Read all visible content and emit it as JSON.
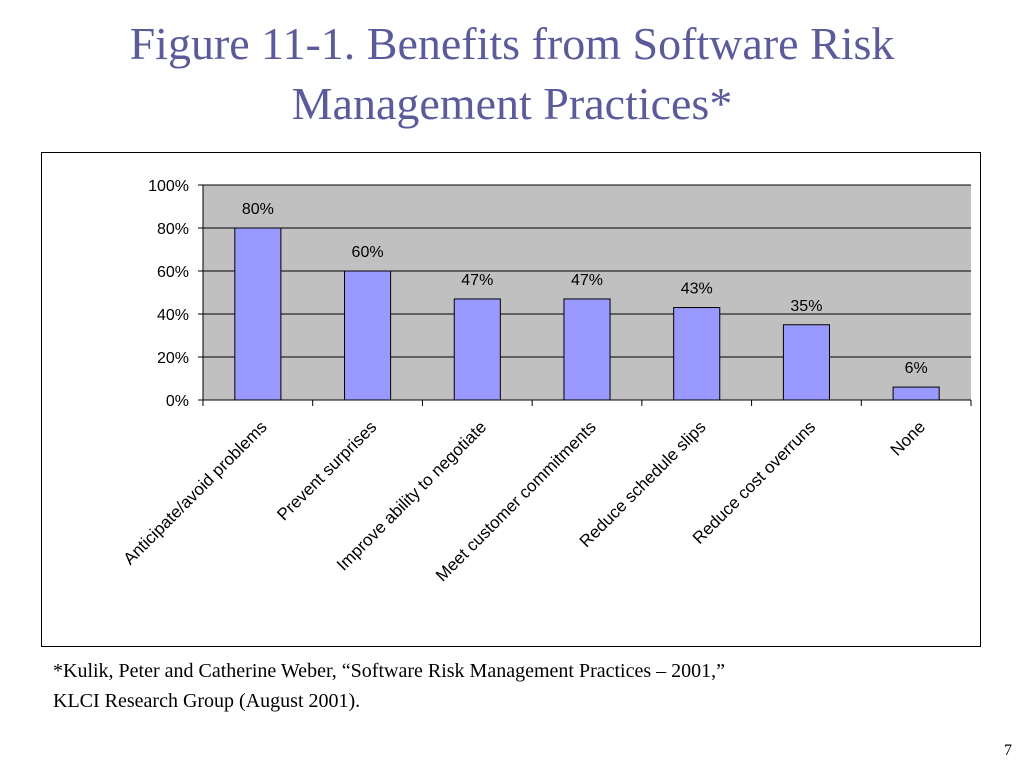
{
  "slide": {
    "title_line1": "Figure 11-1. Benefits from Software Risk",
    "title_line2": "Management Practices*",
    "footnote_line1": "*Kulik, Peter and Catherine Weber, “Software Risk Management Practices – 2001,”",
    "footnote_line2": "KLCI Research Group (August 2001).",
    "page_number": "7"
  },
  "chart_data": {
    "type": "bar",
    "categories": [
      "Anticipate/avoid problems",
      "Prevent surprises",
      "Improve ability to negotiate",
      "Meet customer commitments",
      "Reduce schedule slips",
      "Reduce cost overruns",
      "None"
    ],
    "values": [
      80,
      60,
      47,
      47,
      43,
      35,
      6
    ],
    "data_labels": [
      "80%",
      "60%",
      "47%",
      "47%",
      "43%",
      "35%",
      "6%"
    ],
    "y_ticks": [
      "0%",
      "20%",
      "40%",
      "60%",
      "80%",
      "100%"
    ],
    "ylim": [
      0,
      100
    ],
    "grid": true,
    "legend": "none",
    "colors": {
      "bar_fill": "#9999ff",
      "plot_background": "#c0c0c0",
      "gridline": "#000000"
    }
  }
}
